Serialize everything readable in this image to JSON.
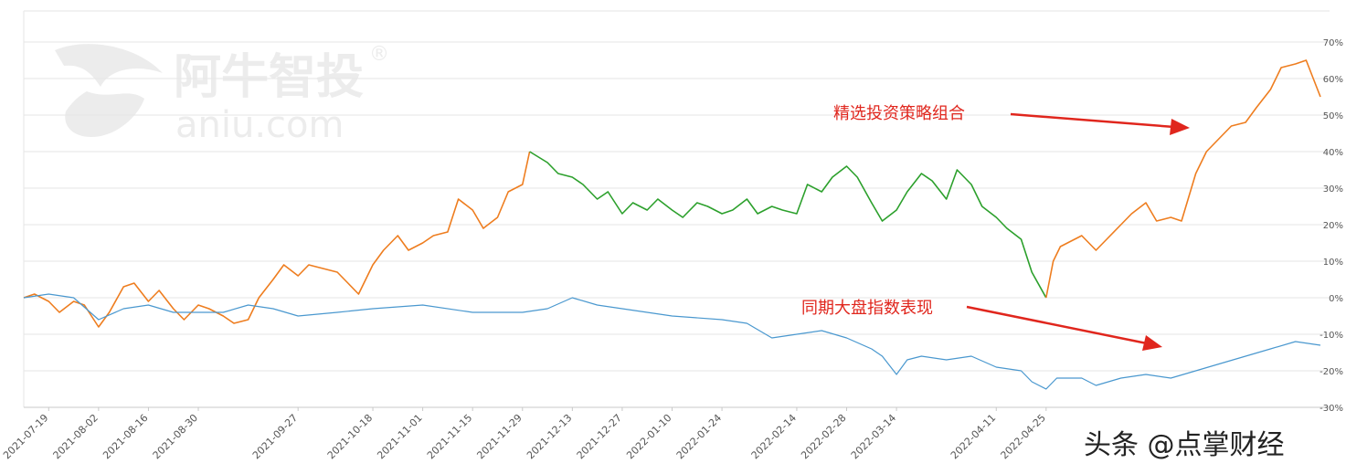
{
  "watermark": {
    "cn": "阿牛智投",
    "en": "aniu.com",
    "reg": "®"
  },
  "credit": "头条 @点掌财经",
  "annotations": {
    "portfolio": "精选投资策略组合",
    "index": "同期大盘指数表现"
  },
  "colors": {
    "portfolio_up": "#ee7d1f",
    "portfolio_down": "#2ca02c",
    "index": "#4a98cf",
    "arrow": "#e0261d"
  },
  "chart_data": {
    "type": "line",
    "y_unit": "%",
    "ylim": [
      -30,
      70
    ],
    "yticks": [
      "-30%",
      "-20%",
      "-10%",
      "0%",
      "10%",
      "20%",
      "30%",
      "40%",
      "50%",
      "60%",
      "70%"
    ],
    "yaxis_position": "right",
    "grid": true,
    "xlim": [
      "2021-07-12",
      "2022-07-11"
    ],
    "xticks": [
      "2021-07-19",
      "2021-08-02",
      "2021-08-16",
      "2021-08-30",
      "2021-09-27",
      "2021-10-18",
      "2021-11-01",
      "2021-11-15",
      "2021-11-29",
      "2021-12-13",
      "2021-12-27",
      "2022-01-10",
      "2022-01-24",
      "2022-02-14",
      "2022-02-28",
      "2022-03-14",
      "2022-04-11",
      "2022-04-25"
    ],
    "series": [
      {
        "key": "portfolio",
        "points": [
          [
            "2021-07-12",
            0
          ],
          [
            "2021-07-15",
            1
          ],
          [
            "2021-07-19",
            -1
          ],
          [
            "2021-07-22",
            -4
          ],
          [
            "2021-07-26",
            -1
          ],
          [
            "2021-07-29",
            -2
          ],
          [
            "2021-08-02",
            -8
          ],
          [
            "2021-08-05",
            -4
          ],
          [
            "2021-08-09",
            3
          ],
          [
            "2021-08-12",
            4
          ],
          [
            "2021-08-16",
            -1
          ],
          [
            "2021-08-19",
            2
          ],
          [
            "2021-08-23",
            -3
          ],
          [
            "2021-08-26",
            -6
          ],
          [
            "2021-08-30",
            -2
          ],
          [
            "2021-09-02",
            -3
          ],
          [
            "2021-09-06",
            -5
          ],
          [
            "2021-09-09",
            -7
          ],
          [
            "2021-09-13",
            -6
          ],
          [
            "2021-09-16",
            0
          ],
          [
            "2021-09-20",
            5
          ],
          [
            "2021-09-23",
            9
          ],
          [
            "2021-09-27",
            6
          ],
          [
            "2021-09-30",
            9
          ],
          [
            "2021-10-08",
            7
          ],
          [
            "2021-10-11",
            4
          ],
          [
            "2021-10-14",
            1
          ],
          [
            "2021-10-18",
            9
          ],
          [
            "2021-10-21",
            13
          ],
          [
            "2021-10-25",
            17
          ],
          [
            "2021-10-28",
            13
          ],
          [
            "2021-11-01",
            15
          ],
          [
            "2021-11-04",
            17
          ],
          [
            "2021-11-08",
            18
          ],
          [
            "2021-11-11",
            27
          ],
          [
            "2021-11-15",
            24
          ],
          [
            "2021-11-18",
            19
          ],
          [
            "2021-11-22",
            22
          ],
          [
            "2021-11-25",
            29
          ],
          [
            "2021-11-29",
            31
          ],
          [
            "2021-12-01",
            40
          ]
        ]
      },
      {
        "key": "portfolio",
        "points": [
          [
            "2021-12-01",
            40
          ],
          [
            "2021-12-06",
            37
          ],
          [
            "2021-12-09",
            34
          ],
          [
            "2021-12-13",
            33
          ],
          [
            "2021-12-16",
            31
          ],
          [
            "2021-12-20",
            27
          ],
          [
            "2021-12-23",
            29
          ],
          [
            "2021-12-27",
            23
          ],
          [
            "2021-12-30",
            26
          ],
          [
            "2022-01-03",
            24
          ],
          [
            "2022-01-06",
            27
          ],
          [
            "2022-01-10",
            24
          ],
          [
            "2022-01-13",
            22
          ],
          [
            "2022-01-17",
            26
          ],
          [
            "2022-01-20",
            25
          ],
          [
            "2022-01-24",
            23
          ],
          [
            "2022-01-27",
            24
          ],
          [
            "2022-01-31",
            27
          ],
          [
            "2022-02-03",
            23
          ],
          [
            "2022-02-07",
            25
          ],
          [
            "2022-02-10",
            24
          ],
          [
            "2022-02-14",
            23
          ],
          [
            "2022-02-17",
            31
          ],
          [
            "2022-02-21",
            29
          ],
          [
            "2022-02-24",
            33
          ],
          [
            "2022-02-28",
            36
          ],
          [
            "2022-03-03",
            33
          ],
          [
            "2022-03-07",
            26
          ],
          [
            "2022-03-10",
            21
          ],
          [
            "2022-03-14",
            24
          ],
          [
            "2022-03-17",
            29
          ],
          [
            "2022-03-21",
            34
          ],
          [
            "2022-03-24",
            32
          ],
          [
            "2022-03-28",
            27
          ],
          [
            "2022-03-31",
            35
          ],
          [
            "2022-04-04",
            31
          ],
          [
            "2022-04-07",
            25
          ],
          [
            "2022-04-11",
            22
          ],
          [
            "2022-04-14",
            19
          ],
          [
            "2022-04-18",
            16
          ],
          [
            "2022-04-21",
            7
          ],
          [
            "2022-04-25",
            0
          ]
        ]
      },
      {
        "key": "portfolio",
        "points": [
          [
            "2022-04-25",
            0
          ],
          [
            "2022-04-27",
            10
          ],
          [
            "2022-04-29",
            14
          ],
          [
            "2022-05-05",
            17
          ],
          [
            "2022-05-09",
            13
          ],
          [
            "2022-05-12",
            16
          ],
          [
            "2022-05-16",
            20
          ],
          [
            "2022-05-19",
            23
          ],
          [
            "2022-05-23",
            26
          ],
          [
            "2022-05-26",
            21
          ],
          [
            "2022-05-30",
            22
          ],
          [
            "2022-06-02",
            21
          ],
          [
            "2022-06-06",
            34
          ],
          [
            "2022-06-09",
            40
          ],
          [
            "2022-06-13",
            44
          ],
          [
            "2022-06-16",
            47
          ],
          [
            "2022-06-20",
            48
          ],
          [
            "2022-06-23",
            52
          ],
          [
            "2022-06-27",
            57
          ],
          [
            "2022-06-30",
            63
          ],
          [
            "2022-07-04",
            64
          ],
          [
            "2022-07-07",
            65
          ],
          [
            "2022-07-11",
            55
          ]
        ]
      },
      {
        "key": "index",
        "points": [
          [
            "2021-07-12",
            0
          ],
          [
            "2021-07-19",
            1
          ],
          [
            "2021-07-26",
            0
          ],
          [
            "2021-08-02",
            -6
          ],
          [
            "2021-08-09",
            -3
          ],
          [
            "2021-08-16",
            -2
          ],
          [
            "2021-08-23",
            -4
          ],
          [
            "2021-08-30",
            -4
          ],
          [
            "2021-09-06",
            -4
          ],
          [
            "2021-09-13",
            -2
          ],
          [
            "2021-09-20",
            -3
          ],
          [
            "2021-09-27",
            -5
          ],
          [
            "2021-10-08",
            -4
          ],
          [
            "2021-10-18",
            -3
          ],
          [
            "2021-11-01",
            -2
          ],
          [
            "2021-11-15",
            -4
          ],
          [
            "2021-11-29",
            -4
          ],
          [
            "2021-12-06",
            -3
          ],
          [
            "2021-12-13",
            0
          ],
          [
            "2021-12-20",
            -2
          ],
          [
            "2021-12-27",
            -3
          ],
          [
            "2022-01-10",
            -5
          ],
          [
            "2022-01-24",
            -6
          ],
          [
            "2022-01-31",
            -7
          ],
          [
            "2022-02-07",
            -11
          ],
          [
            "2022-02-14",
            -10
          ],
          [
            "2022-02-21",
            -9
          ],
          [
            "2022-02-28",
            -11
          ],
          [
            "2022-03-07",
            -14
          ],
          [
            "2022-03-10",
            -16
          ],
          [
            "2022-03-14",
            -21
          ],
          [
            "2022-03-17",
            -17
          ],
          [
            "2022-03-21",
            -16
          ],
          [
            "2022-03-28",
            -17
          ],
          [
            "2022-04-04",
            -16
          ],
          [
            "2022-04-11",
            -19
          ],
          [
            "2022-04-18",
            -20
          ],
          [
            "2022-04-21",
            -23
          ],
          [
            "2022-04-25",
            -25
          ],
          [
            "2022-04-28",
            -22
          ],
          [
            "2022-05-05",
            -22
          ],
          [
            "2022-05-09",
            -24
          ],
          [
            "2022-05-16",
            -22
          ],
          [
            "2022-05-23",
            -21
          ],
          [
            "2022-05-30",
            -22
          ],
          [
            "2022-06-06",
            -20
          ],
          [
            "2022-06-13",
            -18
          ],
          [
            "2022-06-20",
            -16
          ],
          [
            "2022-06-27",
            -14
          ],
          [
            "2022-07-04",
            -12
          ],
          [
            "2022-07-11",
            -13
          ]
        ]
      }
    ]
  }
}
